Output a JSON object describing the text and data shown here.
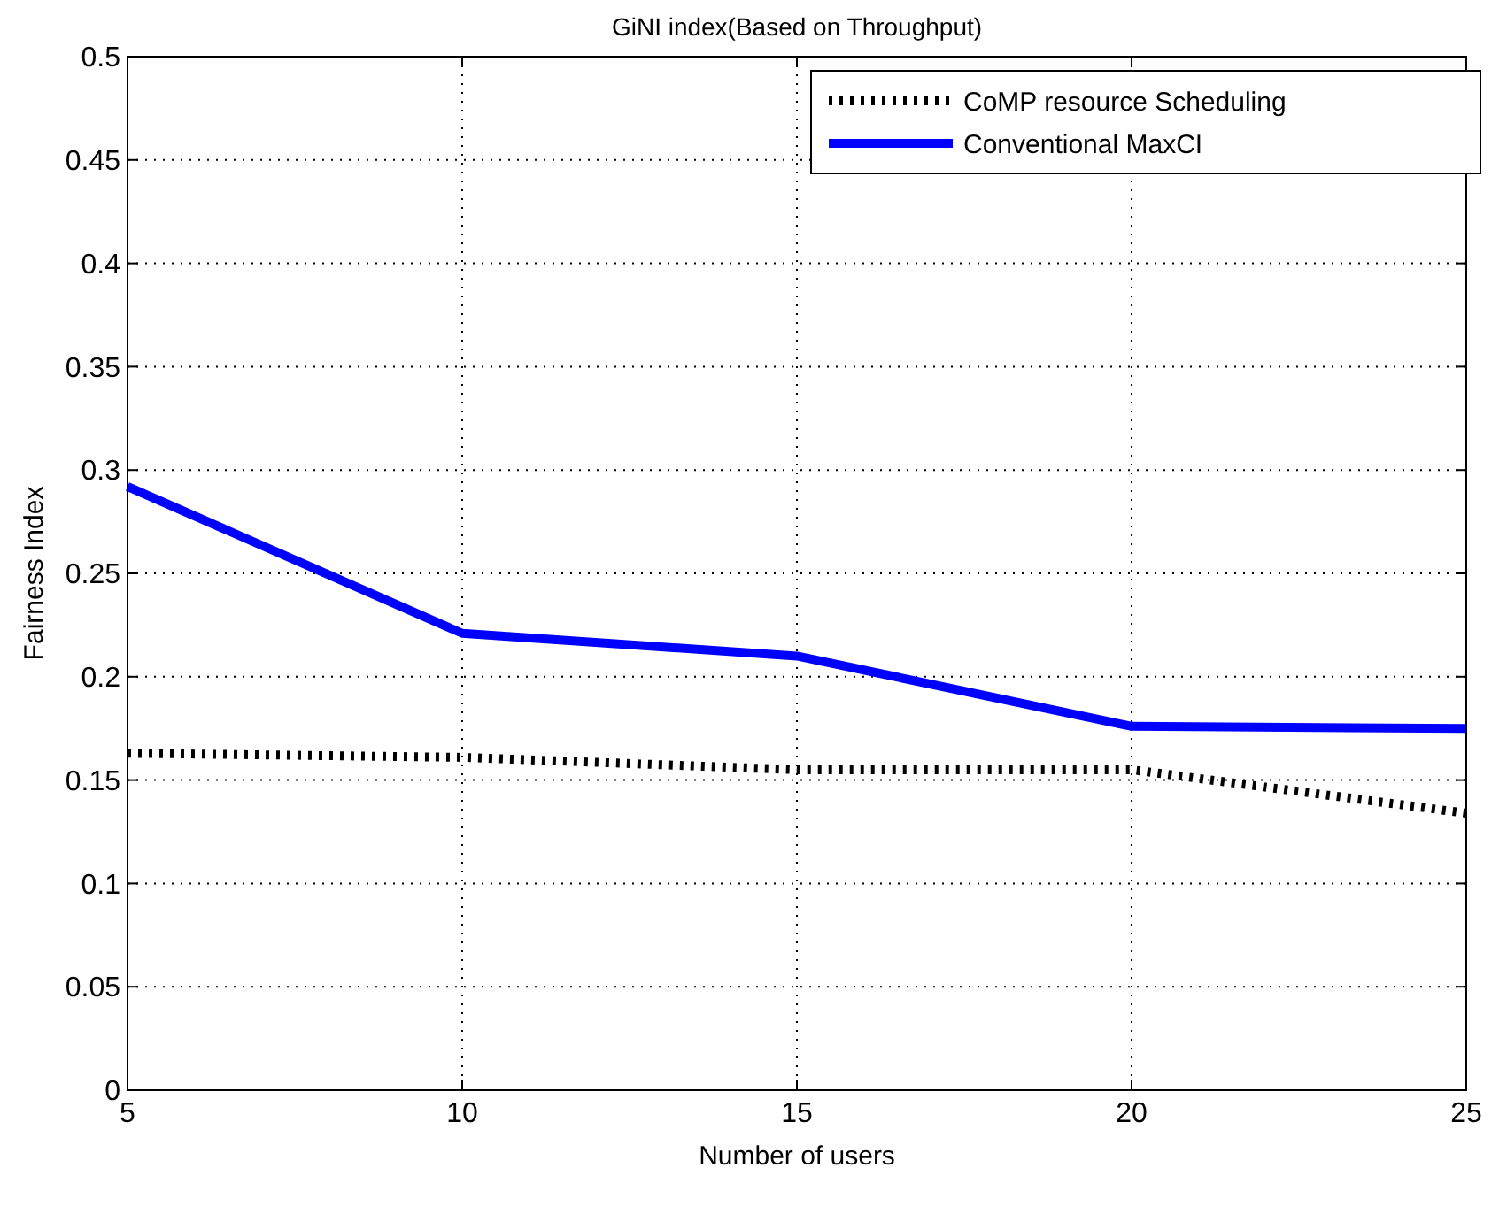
{
  "chart_data": {
    "type": "line",
    "title": "GiNI index(Based on Throughput)",
    "xlabel": "Number of users",
    "ylabel": "Fairness Index",
    "x": [
      5,
      10,
      15,
      20,
      25
    ],
    "series": [
      {
        "name": "CoMP resource Scheduling",
        "color": "#000000",
        "line_style": "dotted",
        "values": [
          0.163,
          0.161,
          0.155,
          0.155,
          0.134
        ]
      },
      {
        "name": "Conventional MaxCI",
        "color": "#0000ff",
        "line_style": "solid",
        "values": [
          0.292,
          0.221,
          0.21,
          0.176,
          0.175
        ]
      }
    ],
    "xlim": [
      5,
      25
    ],
    "xticks": [
      5,
      10,
      15,
      20,
      25
    ],
    "ylim": [
      0,
      0.5
    ],
    "yticks": [
      0,
      0.05,
      0.1,
      0.15,
      0.2,
      0.25,
      0.3,
      0.35,
      0.4,
      0.45,
      0.5
    ],
    "grid": true,
    "legend": "top right",
    "marker": "none"
  }
}
